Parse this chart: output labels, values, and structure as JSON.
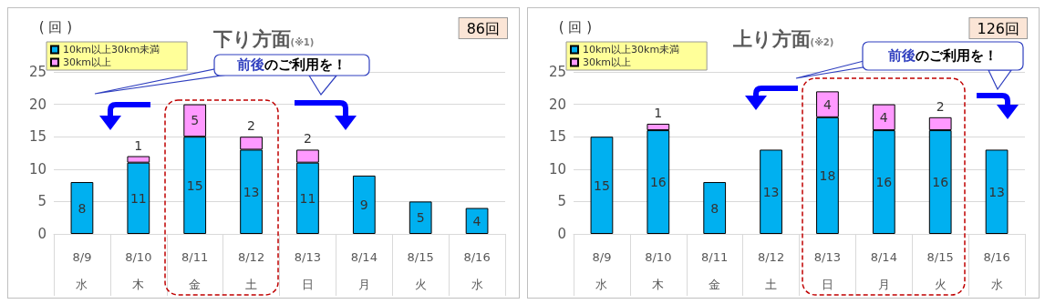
{
  "chart_data": [
    {
      "type": "bar",
      "title": "下り方面",
      "subtitle": "(※1)",
      "ylabel": "( 回 )",
      "annotations": [
        "86回",
        "前後のご利用を！"
      ],
      "categories": [
        "8/9\n水",
        "8/10\n木",
        "8/11\n金",
        "8/12\n土",
        "8/13\n日",
        "8/14\n月",
        "8/15\n火",
        "8/16\n水"
      ],
      "series": [
        {
          "name": "10km以上30km未満",
          "color": "#00b0f0",
          "values": [
            8,
            11,
            15,
            13,
            11,
            9,
            5,
            4
          ]
        },
        {
          "name": "30km以上",
          "color": "#ff99ff",
          "values": [
            null,
            1,
            5,
            2,
            2,
            null,
            null,
            null
          ]
        }
      ],
      "stacked": true,
      "data_labels": true,
      "ylim": [
        0,
        25
      ],
      "yticks": [
        0,
        5,
        10,
        15,
        20,
        25
      ],
      "grid": "y",
      "legend": "top left"
    },
    {
      "type": "bar",
      "title": "上り方面",
      "subtitle": "(※2)",
      "ylabel": "( 回 )",
      "annotations": [
        "126回",
        "前後のご利用を！"
      ],
      "categories": [
        "8/9\n水",
        "8/10\n木",
        "8/11\n金",
        "8/12\n土",
        "8/13\n日",
        "8/14\n月",
        "8/15\n火",
        "8/16\n水"
      ],
      "series": [
        {
          "name": "10km以上30km未満",
          "color": "#00b0f0",
          "values": [
            15,
            16,
            8,
            13,
            18,
            16,
            16,
            13
          ]
        },
        {
          "name": "30km以上",
          "color": "#ff99ff",
          "values": [
            null,
            1,
            null,
            null,
            4,
            4,
            2,
            null
          ]
        }
      ],
      "stacked": true,
      "data_labels": true,
      "ylim": [
        0,
        25
      ],
      "yticks": [
        0,
        5,
        10,
        15,
        20,
        25
      ],
      "grid": "y",
      "legend": "top left"
    }
  ]
}
